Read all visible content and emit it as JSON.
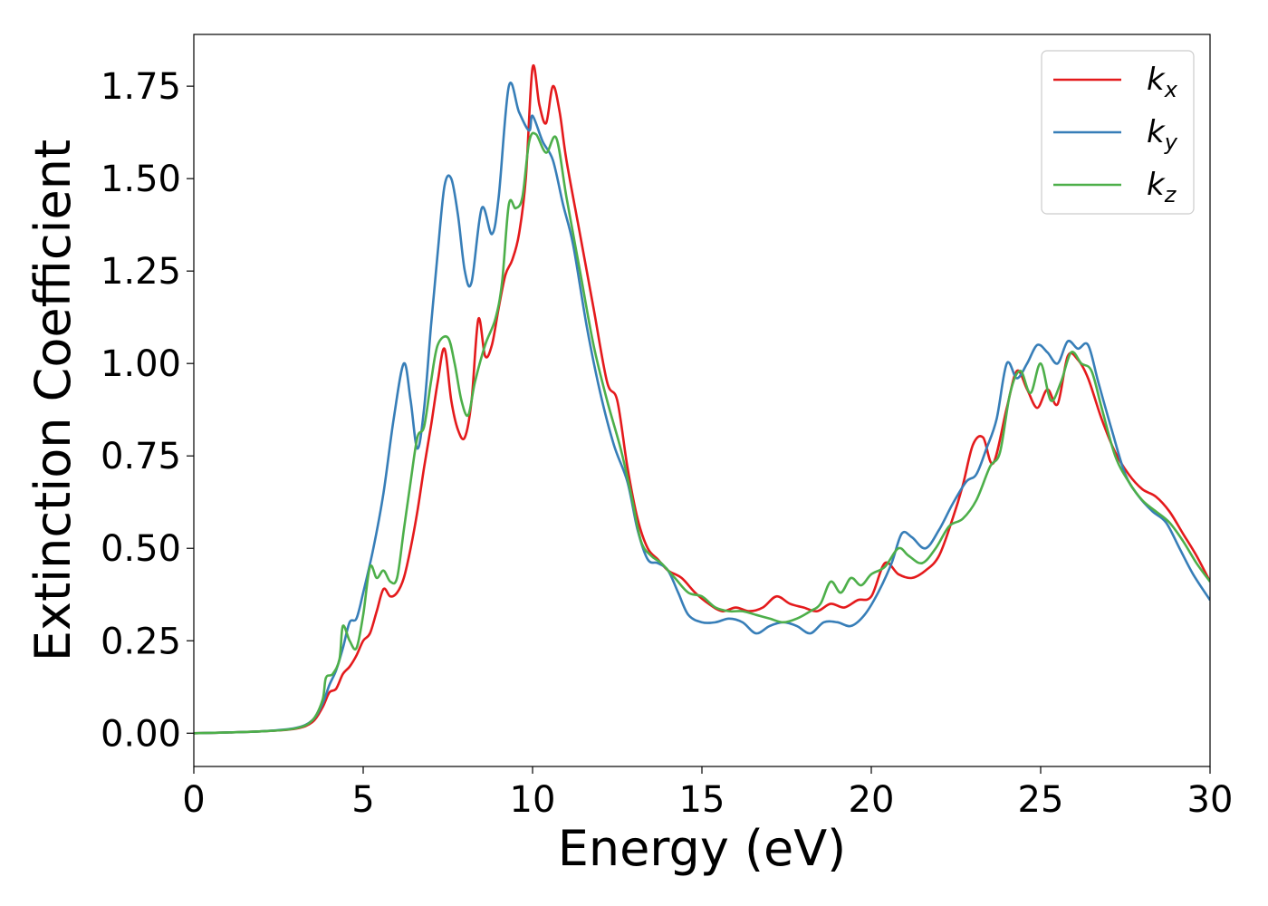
{
  "chart_data": {
    "type": "line",
    "title": "",
    "xlabel": "Energy (eV)",
    "ylabel": "Extinction Coefficient",
    "xlim": [
      0,
      30
    ],
    "ylim": [
      -0.09,
      1.89
    ],
    "xticks": [
      0,
      5,
      10,
      15,
      20,
      25,
      30
    ],
    "xtick_labels": [
      "0",
      "5",
      "10",
      "15",
      "20",
      "25",
      "30"
    ],
    "yticks": [
      0.0,
      0.25,
      0.5,
      0.75,
      1.0,
      1.25,
      1.5,
      1.75
    ],
    "ytick_labels": [
      "0.00",
      "0.25",
      "0.50",
      "0.75",
      "1.00",
      "1.25",
      "1.50",
      "1.75"
    ],
    "grid": false,
    "legend_position": "top-right",
    "series": [
      {
        "name": "k",
        "subscript": "x",
        "color": "#e41a1c",
        "points": [
          [
            0,
            0.0
          ],
          [
            1,
            0.002
          ],
          [
            2,
            0.005
          ],
          [
            3,
            0.012
          ],
          [
            3.5,
            0.03
          ],
          [
            3.8,
            0.07
          ],
          [
            4.0,
            0.11
          ],
          [
            4.2,
            0.12
          ],
          [
            4.4,
            0.16
          ],
          [
            4.6,
            0.18
          ],
          [
            4.8,
            0.21
          ],
          [
            5.0,
            0.25
          ],
          [
            5.2,
            0.27
          ],
          [
            5.4,
            0.33
          ],
          [
            5.6,
            0.39
          ],
          [
            5.8,
            0.37
          ],
          [
            6.0,
            0.38
          ],
          [
            6.2,
            0.42
          ],
          [
            6.4,
            0.5
          ],
          [
            6.6,
            0.6
          ],
          [
            6.8,
            0.72
          ],
          [
            7.0,
            0.83
          ],
          [
            7.2,
            0.95
          ],
          [
            7.4,
            1.04
          ],
          [
            7.6,
            0.9
          ],
          [
            7.8,
            0.82
          ],
          [
            8.0,
            0.8
          ],
          [
            8.2,
            0.9
          ],
          [
            8.4,
            1.12
          ],
          [
            8.6,
            1.02
          ],
          [
            8.8,
            1.05
          ],
          [
            9.0,
            1.15
          ],
          [
            9.2,
            1.24
          ],
          [
            9.4,
            1.28
          ],
          [
            9.6,
            1.35
          ],
          [
            9.8,
            1.5
          ],
          [
            10.0,
            1.8
          ],
          [
            10.2,
            1.7
          ],
          [
            10.4,
            1.65
          ],
          [
            10.6,
            1.75
          ],
          [
            10.8,
            1.68
          ],
          [
            11.0,
            1.55
          ],
          [
            11.4,
            1.35
          ],
          [
            11.8,
            1.15
          ],
          [
            12.2,
            0.95
          ],
          [
            12.5,
            0.9
          ],
          [
            12.8,
            0.72
          ],
          [
            13.1,
            0.58
          ],
          [
            13.4,
            0.5
          ],
          [
            13.7,
            0.47
          ],
          [
            14.0,
            0.44
          ],
          [
            14.4,
            0.42
          ],
          [
            14.8,
            0.38
          ],
          [
            15.2,
            0.35
          ],
          [
            15.6,
            0.33
          ],
          [
            16.0,
            0.34
          ],
          [
            16.4,
            0.33
          ],
          [
            16.8,
            0.34
          ],
          [
            17.2,
            0.37
          ],
          [
            17.6,
            0.35
          ],
          [
            18.0,
            0.34
          ],
          [
            18.4,
            0.33
          ],
          [
            18.8,
            0.35
          ],
          [
            19.2,
            0.34
          ],
          [
            19.6,
            0.36
          ],
          [
            20.0,
            0.37
          ],
          [
            20.4,
            0.46
          ],
          [
            20.8,
            0.43
          ],
          [
            21.2,
            0.42
          ],
          [
            21.6,
            0.44
          ],
          [
            22.0,
            0.48
          ],
          [
            22.4,
            0.58
          ],
          [
            22.7,
            0.67
          ],
          [
            23.0,
            0.78
          ],
          [
            23.3,
            0.8
          ],
          [
            23.6,
            0.73
          ],
          [
            24.0,
            0.88
          ],
          [
            24.3,
            0.98
          ],
          [
            24.6,
            0.93
          ],
          [
            24.9,
            0.88
          ],
          [
            25.2,
            0.93
          ],
          [
            25.5,
            0.89
          ],
          [
            25.8,
            1.02
          ],
          [
            26.1,
            1.01
          ],
          [
            26.4,
            0.96
          ],
          [
            26.8,
            0.85
          ],
          [
            27.2,
            0.76
          ],
          [
            27.6,
            0.7
          ],
          [
            28.0,
            0.66
          ],
          [
            28.4,
            0.64
          ],
          [
            28.8,
            0.6
          ],
          [
            29.2,
            0.54
          ],
          [
            29.6,
            0.48
          ],
          [
            30.0,
            0.41
          ]
        ]
      },
      {
        "name": "k",
        "subscript": "y",
        "color": "#377eb8",
        "points": [
          [
            0,
            0.0
          ],
          [
            1,
            0.002
          ],
          [
            2,
            0.005
          ],
          [
            3,
            0.014
          ],
          [
            3.5,
            0.035
          ],
          [
            3.8,
            0.08
          ],
          [
            4.0,
            0.13
          ],
          [
            4.2,
            0.17
          ],
          [
            4.4,
            0.23
          ],
          [
            4.6,
            0.3
          ],
          [
            4.8,
            0.31
          ],
          [
            5.0,
            0.38
          ],
          [
            5.3,
            0.5
          ],
          [
            5.6,
            0.65
          ],
          [
            5.9,
            0.85
          ],
          [
            6.2,
            1.0
          ],
          [
            6.4,
            0.9
          ],
          [
            6.6,
            0.77
          ],
          [
            6.8,
            0.88
          ],
          [
            7.0,
            1.1
          ],
          [
            7.2,
            1.3
          ],
          [
            7.4,
            1.48
          ],
          [
            7.6,
            1.5
          ],
          [
            7.8,
            1.4
          ],
          [
            8.0,
            1.25
          ],
          [
            8.2,
            1.22
          ],
          [
            8.5,
            1.42
          ],
          [
            8.8,
            1.35
          ],
          [
            9.0,
            1.45
          ],
          [
            9.3,
            1.75
          ],
          [
            9.6,
            1.68
          ],
          [
            9.9,
            1.63
          ],
          [
            10.0,
            1.67
          ],
          [
            10.3,
            1.6
          ],
          [
            10.6,
            1.55
          ],
          [
            10.9,
            1.43
          ],
          [
            11.2,
            1.32
          ],
          [
            11.6,
            1.1
          ],
          [
            12.0,
            0.92
          ],
          [
            12.4,
            0.78
          ],
          [
            12.8,
            0.68
          ],
          [
            13.1,
            0.55
          ],
          [
            13.4,
            0.47
          ],
          [
            13.7,
            0.46
          ],
          [
            14.0,
            0.44
          ],
          [
            14.3,
            0.38
          ],
          [
            14.6,
            0.32
          ],
          [
            15.0,
            0.3
          ],
          [
            15.4,
            0.3
          ],
          [
            15.8,
            0.31
          ],
          [
            16.2,
            0.3
          ],
          [
            16.6,
            0.27
          ],
          [
            17.0,
            0.29
          ],
          [
            17.4,
            0.3
          ],
          [
            17.8,
            0.29
          ],
          [
            18.2,
            0.27
          ],
          [
            18.6,
            0.3
          ],
          [
            19.0,
            0.3
          ],
          [
            19.4,
            0.29
          ],
          [
            19.8,
            0.32
          ],
          [
            20.2,
            0.38
          ],
          [
            20.6,
            0.46
          ],
          [
            20.9,
            0.54
          ],
          [
            21.2,
            0.53
          ],
          [
            21.6,
            0.5
          ],
          [
            22.0,
            0.55
          ],
          [
            22.4,
            0.62
          ],
          [
            22.8,
            0.68
          ],
          [
            23.1,
            0.7
          ],
          [
            23.4,
            0.77
          ],
          [
            23.7,
            0.85
          ],
          [
            24.0,
            1.0
          ],
          [
            24.3,
            0.96
          ],
          [
            24.6,
            1.0
          ],
          [
            24.9,
            1.05
          ],
          [
            25.2,
            1.03
          ],
          [
            25.5,
            1.0
          ],
          [
            25.8,
            1.06
          ],
          [
            26.1,
            1.04
          ],
          [
            26.4,
            1.05
          ],
          [
            26.7,
            0.95
          ],
          [
            27.1,
            0.82
          ],
          [
            27.5,
            0.7
          ],
          [
            27.9,
            0.64
          ],
          [
            28.3,
            0.6
          ],
          [
            28.7,
            0.57
          ],
          [
            29.1,
            0.5
          ],
          [
            29.5,
            0.43
          ],
          [
            30.0,
            0.36
          ]
        ]
      },
      {
        "name": "k",
        "subscript": "z",
        "color": "#4daf4a",
        "points": [
          [
            0,
            0.0
          ],
          [
            1,
            0.002
          ],
          [
            2,
            0.005
          ],
          [
            3,
            0.013
          ],
          [
            3.5,
            0.035
          ],
          [
            3.8,
            0.09
          ],
          [
            3.9,
            0.15
          ],
          [
            4.1,
            0.16
          ],
          [
            4.3,
            0.2
          ],
          [
            4.4,
            0.29
          ],
          [
            4.6,
            0.25
          ],
          [
            4.8,
            0.23
          ],
          [
            5.0,
            0.32
          ],
          [
            5.2,
            0.45
          ],
          [
            5.4,
            0.42
          ],
          [
            5.6,
            0.44
          ],
          [
            5.8,
            0.41
          ],
          [
            6.0,
            0.42
          ],
          [
            6.2,
            0.55
          ],
          [
            6.4,
            0.68
          ],
          [
            6.6,
            0.8
          ],
          [
            6.8,
            0.83
          ],
          [
            7.0,
            0.95
          ],
          [
            7.2,
            1.05
          ],
          [
            7.5,
            1.07
          ],
          [
            7.7,
            1.0
          ],
          [
            7.9,
            0.9
          ],
          [
            8.1,
            0.86
          ],
          [
            8.3,
            0.95
          ],
          [
            8.6,
            1.05
          ],
          [
            8.9,
            1.12
          ],
          [
            9.1,
            1.22
          ],
          [
            9.3,
            1.43
          ],
          [
            9.5,
            1.42
          ],
          [
            9.7,
            1.45
          ],
          [
            9.9,
            1.6
          ],
          [
            10.1,
            1.62
          ],
          [
            10.4,
            1.57
          ],
          [
            10.7,
            1.61
          ],
          [
            11.0,
            1.45
          ],
          [
            11.4,
            1.25
          ],
          [
            11.8,
            1.05
          ],
          [
            12.2,
            0.9
          ],
          [
            12.6,
            0.77
          ],
          [
            12.9,
            0.65
          ],
          [
            13.2,
            0.52
          ],
          [
            13.5,
            0.48
          ],
          [
            13.8,
            0.46
          ],
          [
            14.2,
            0.42
          ],
          [
            14.6,
            0.38
          ],
          [
            15.0,
            0.37
          ],
          [
            15.4,
            0.34
          ],
          [
            15.8,
            0.33
          ],
          [
            16.2,
            0.33
          ],
          [
            16.6,
            0.32
          ],
          [
            17.0,
            0.31
          ],
          [
            17.4,
            0.3
          ],
          [
            17.8,
            0.31
          ],
          [
            18.2,
            0.33
          ],
          [
            18.5,
            0.35
          ],
          [
            18.8,
            0.41
          ],
          [
            19.1,
            0.38
          ],
          [
            19.4,
            0.42
          ],
          [
            19.7,
            0.4
          ],
          [
            20.0,
            0.43
          ],
          [
            20.4,
            0.45
          ],
          [
            20.8,
            0.5
          ],
          [
            21.1,
            0.48
          ],
          [
            21.5,
            0.46
          ],
          [
            21.9,
            0.5
          ],
          [
            22.3,
            0.56
          ],
          [
            22.7,
            0.58
          ],
          [
            23.1,
            0.63
          ],
          [
            23.5,
            0.72
          ],
          [
            23.8,
            0.76
          ],
          [
            24.1,
            0.92
          ],
          [
            24.4,
            0.98
          ],
          [
            24.7,
            0.92
          ],
          [
            25.0,
            1.0
          ],
          [
            25.3,
            0.9
          ],
          [
            25.6,
            0.95
          ],
          [
            25.9,
            1.03
          ],
          [
            26.2,
            1.0
          ],
          [
            26.5,
            0.98
          ],
          [
            26.8,
            0.88
          ],
          [
            27.2,
            0.75
          ],
          [
            27.6,
            0.68
          ],
          [
            28.0,
            0.63
          ],
          [
            28.4,
            0.6
          ],
          [
            28.8,
            0.57
          ],
          [
            29.2,
            0.52
          ],
          [
            29.6,
            0.46
          ],
          [
            30.0,
            0.41
          ]
        ]
      }
    ]
  }
}
